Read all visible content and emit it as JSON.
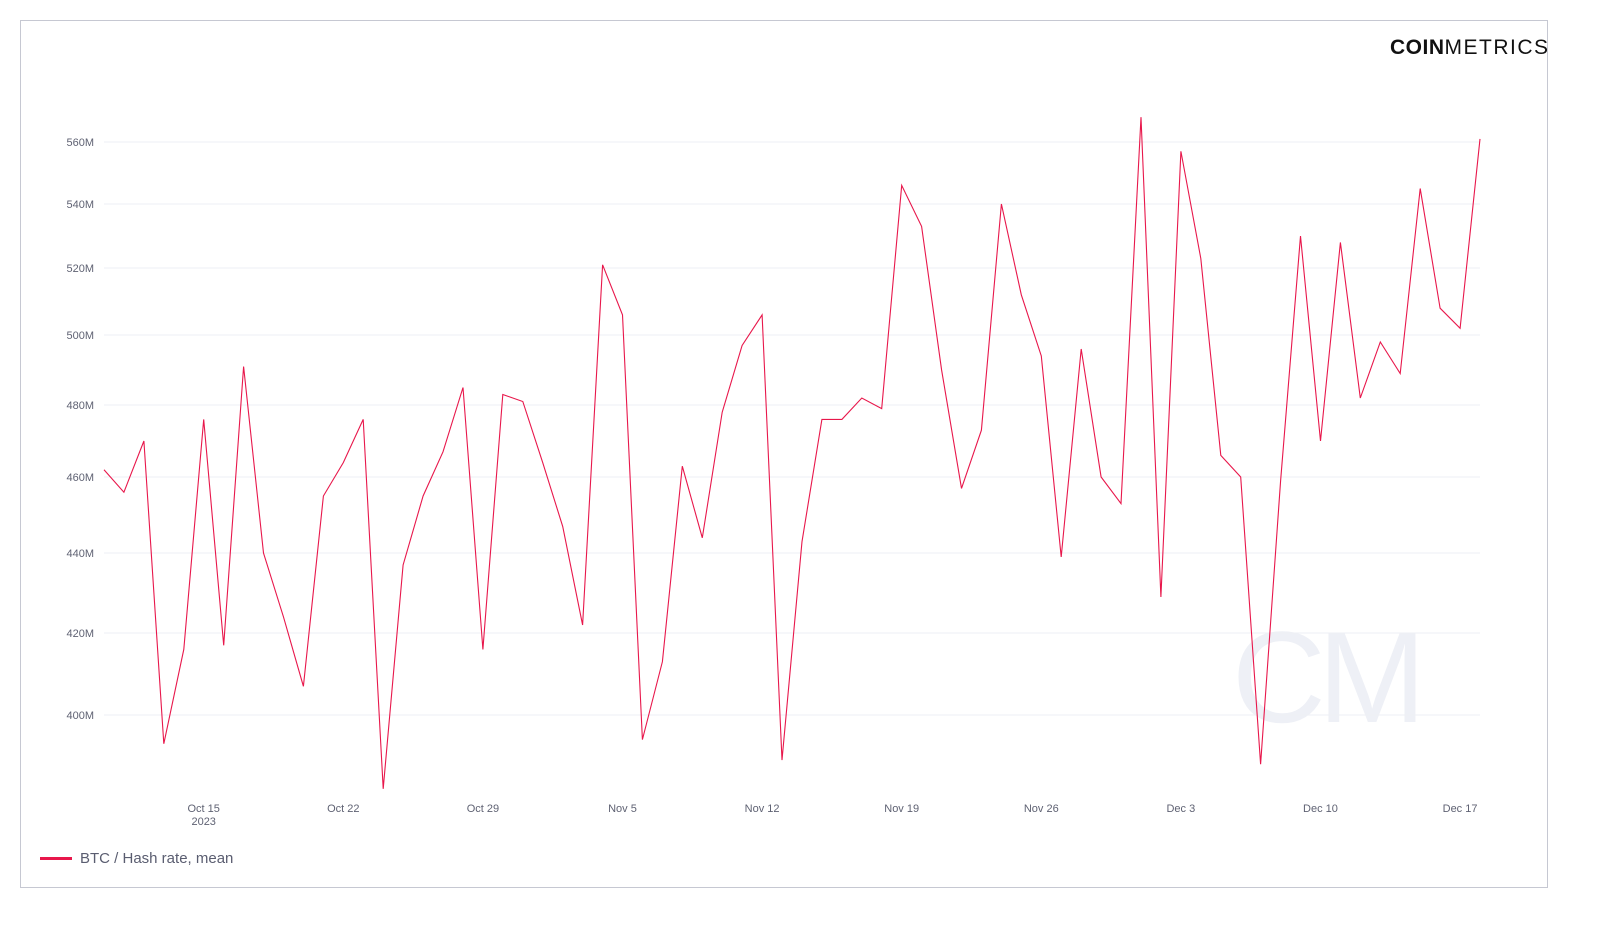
{
  "brand": {
    "bold": "COIN",
    "light": "METRICS"
  },
  "watermark": "CM",
  "legend": {
    "label": "BTC / Hash rate, mean"
  },
  "colors": {
    "series": "#e8174b",
    "grid": "#eeeff4",
    "tick": "#5f6273",
    "border": "#c6c8d2"
  },
  "chart_data": {
    "type": "line",
    "title": "",
    "xlabel": "",
    "ylabel": "",
    "ylim": [
      380000000,
      575000000
    ],
    "y_ticks": [
      {
        "value": 400000000,
        "label": "400M"
      },
      {
        "value": 420000000,
        "label": "420M"
      },
      {
        "value": 440000000,
        "label": "440M"
      },
      {
        "value": 460000000,
        "label": "460M"
      },
      {
        "value": 480000000,
        "label": "480M"
      },
      {
        "value": 500000000,
        "label": "500M"
      },
      {
        "value": 520000000,
        "label": "520M"
      },
      {
        "value": 540000000,
        "label": "540M"
      },
      {
        "value": 560000000,
        "label": "560M"
      }
    ],
    "x_ticks": [
      {
        "date": "2023-10-15",
        "label": "Oct 15",
        "sublabel": "2023"
      },
      {
        "date": "2023-10-22",
        "label": "Oct 22",
        "sublabel": ""
      },
      {
        "date": "2023-10-29",
        "label": "Oct 29",
        "sublabel": ""
      },
      {
        "date": "2023-11-05",
        "label": "Nov 5",
        "sublabel": ""
      },
      {
        "date": "2023-11-12",
        "label": "Nov 12",
        "sublabel": ""
      },
      {
        "date": "2023-11-19",
        "label": "Nov 19",
        "sublabel": ""
      },
      {
        "date": "2023-11-26",
        "label": "Nov 26",
        "sublabel": ""
      },
      {
        "date": "2023-12-03",
        "label": "Dec 3",
        "sublabel": ""
      },
      {
        "date": "2023-12-10",
        "label": "Dec 10",
        "sublabel": ""
      },
      {
        "date": "2023-12-17",
        "label": "Dec 17",
        "sublabel": ""
      }
    ],
    "series": [
      {
        "name": "BTC / Hash rate, mean",
        "x": [
          "2023-10-10",
          "2023-10-11",
          "2023-10-12",
          "2023-10-13",
          "2023-10-14",
          "2023-10-15",
          "2023-10-16",
          "2023-10-17",
          "2023-10-18",
          "2023-10-19",
          "2023-10-20",
          "2023-10-21",
          "2023-10-22",
          "2023-10-23",
          "2023-10-24",
          "2023-10-25",
          "2023-10-26",
          "2023-10-27",
          "2023-10-28",
          "2023-10-29",
          "2023-10-30",
          "2023-10-31",
          "2023-11-01",
          "2023-11-02",
          "2023-11-03",
          "2023-11-04",
          "2023-11-05",
          "2023-11-06",
          "2023-11-07",
          "2023-11-08",
          "2023-11-09",
          "2023-11-10",
          "2023-11-11",
          "2023-11-12",
          "2023-11-13",
          "2023-11-14",
          "2023-11-15",
          "2023-11-16",
          "2023-11-17",
          "2023-11-18",
          "2023-11-19",
          "2023-11-20",
          "2023-11-21",
          "2023-11-22",
          "2023-11-23",
          "2023-11-24",
          "2023-11-25",
          "2023-11-26",
          "2023-11-27",
          "2023-11-28",
          "2023-11-29",
          "2023-11-30",
          "2023-12-01",
          "2023-12-02",
          "2023-12-03",
          "2023-12-04",
          "2023-12-05",
          "2023-12-06",
          "2023-12-07",
          "2023-12-08",
          "2023-12-09",
          "2023-12-10",
          "2023-12-11",
          "2023-12-12",
          "2023-12-13",
          "2023-12-14",
          "2023-12-15",
          "2023-12-16",
          "2023-12-17",
          "2023-12-18"
        ],
        "values": [
          462000000,
          456000000,
          470000000,
          393000000,
          416000000,
          476000000,
          417000000,
          491000000,
          440000000,
          424000000,
          407000000,
          455000000,
          464000000,
          476000000,
          382000000,
          437000000,
          455000000,
          467000000,
          485000000,
          416000000,
          483000000,
          481000000,
          464000000,
          447000000,
          422000000,
          521000000,
          506000000,
          394000000,
          413000000,
          463000000,
          444000000,
          478000000,
          497000000,
          506000000,
          389000000,
          443000000,
          476000000,
          476000000,
          482000000,
          479000000,
          546000000,
          533000000,
          490000000,
          457000000,
          473000000,
          540000000,
          512000000,
          494000000,
          439000000,
          496000000,
          460000000,
          453000000,
          568000000,
          429000000,
          557000000,
          523000000,
          466000000,
          460000000,
          388000000,
          459000000,
          530000000,
          470000000,
          528000000,
          482000000,
          498000000,
          489000000,
          545000000,
          508000000,
          502000000,
          561000000
        ]
      }
    ]
  }
}
